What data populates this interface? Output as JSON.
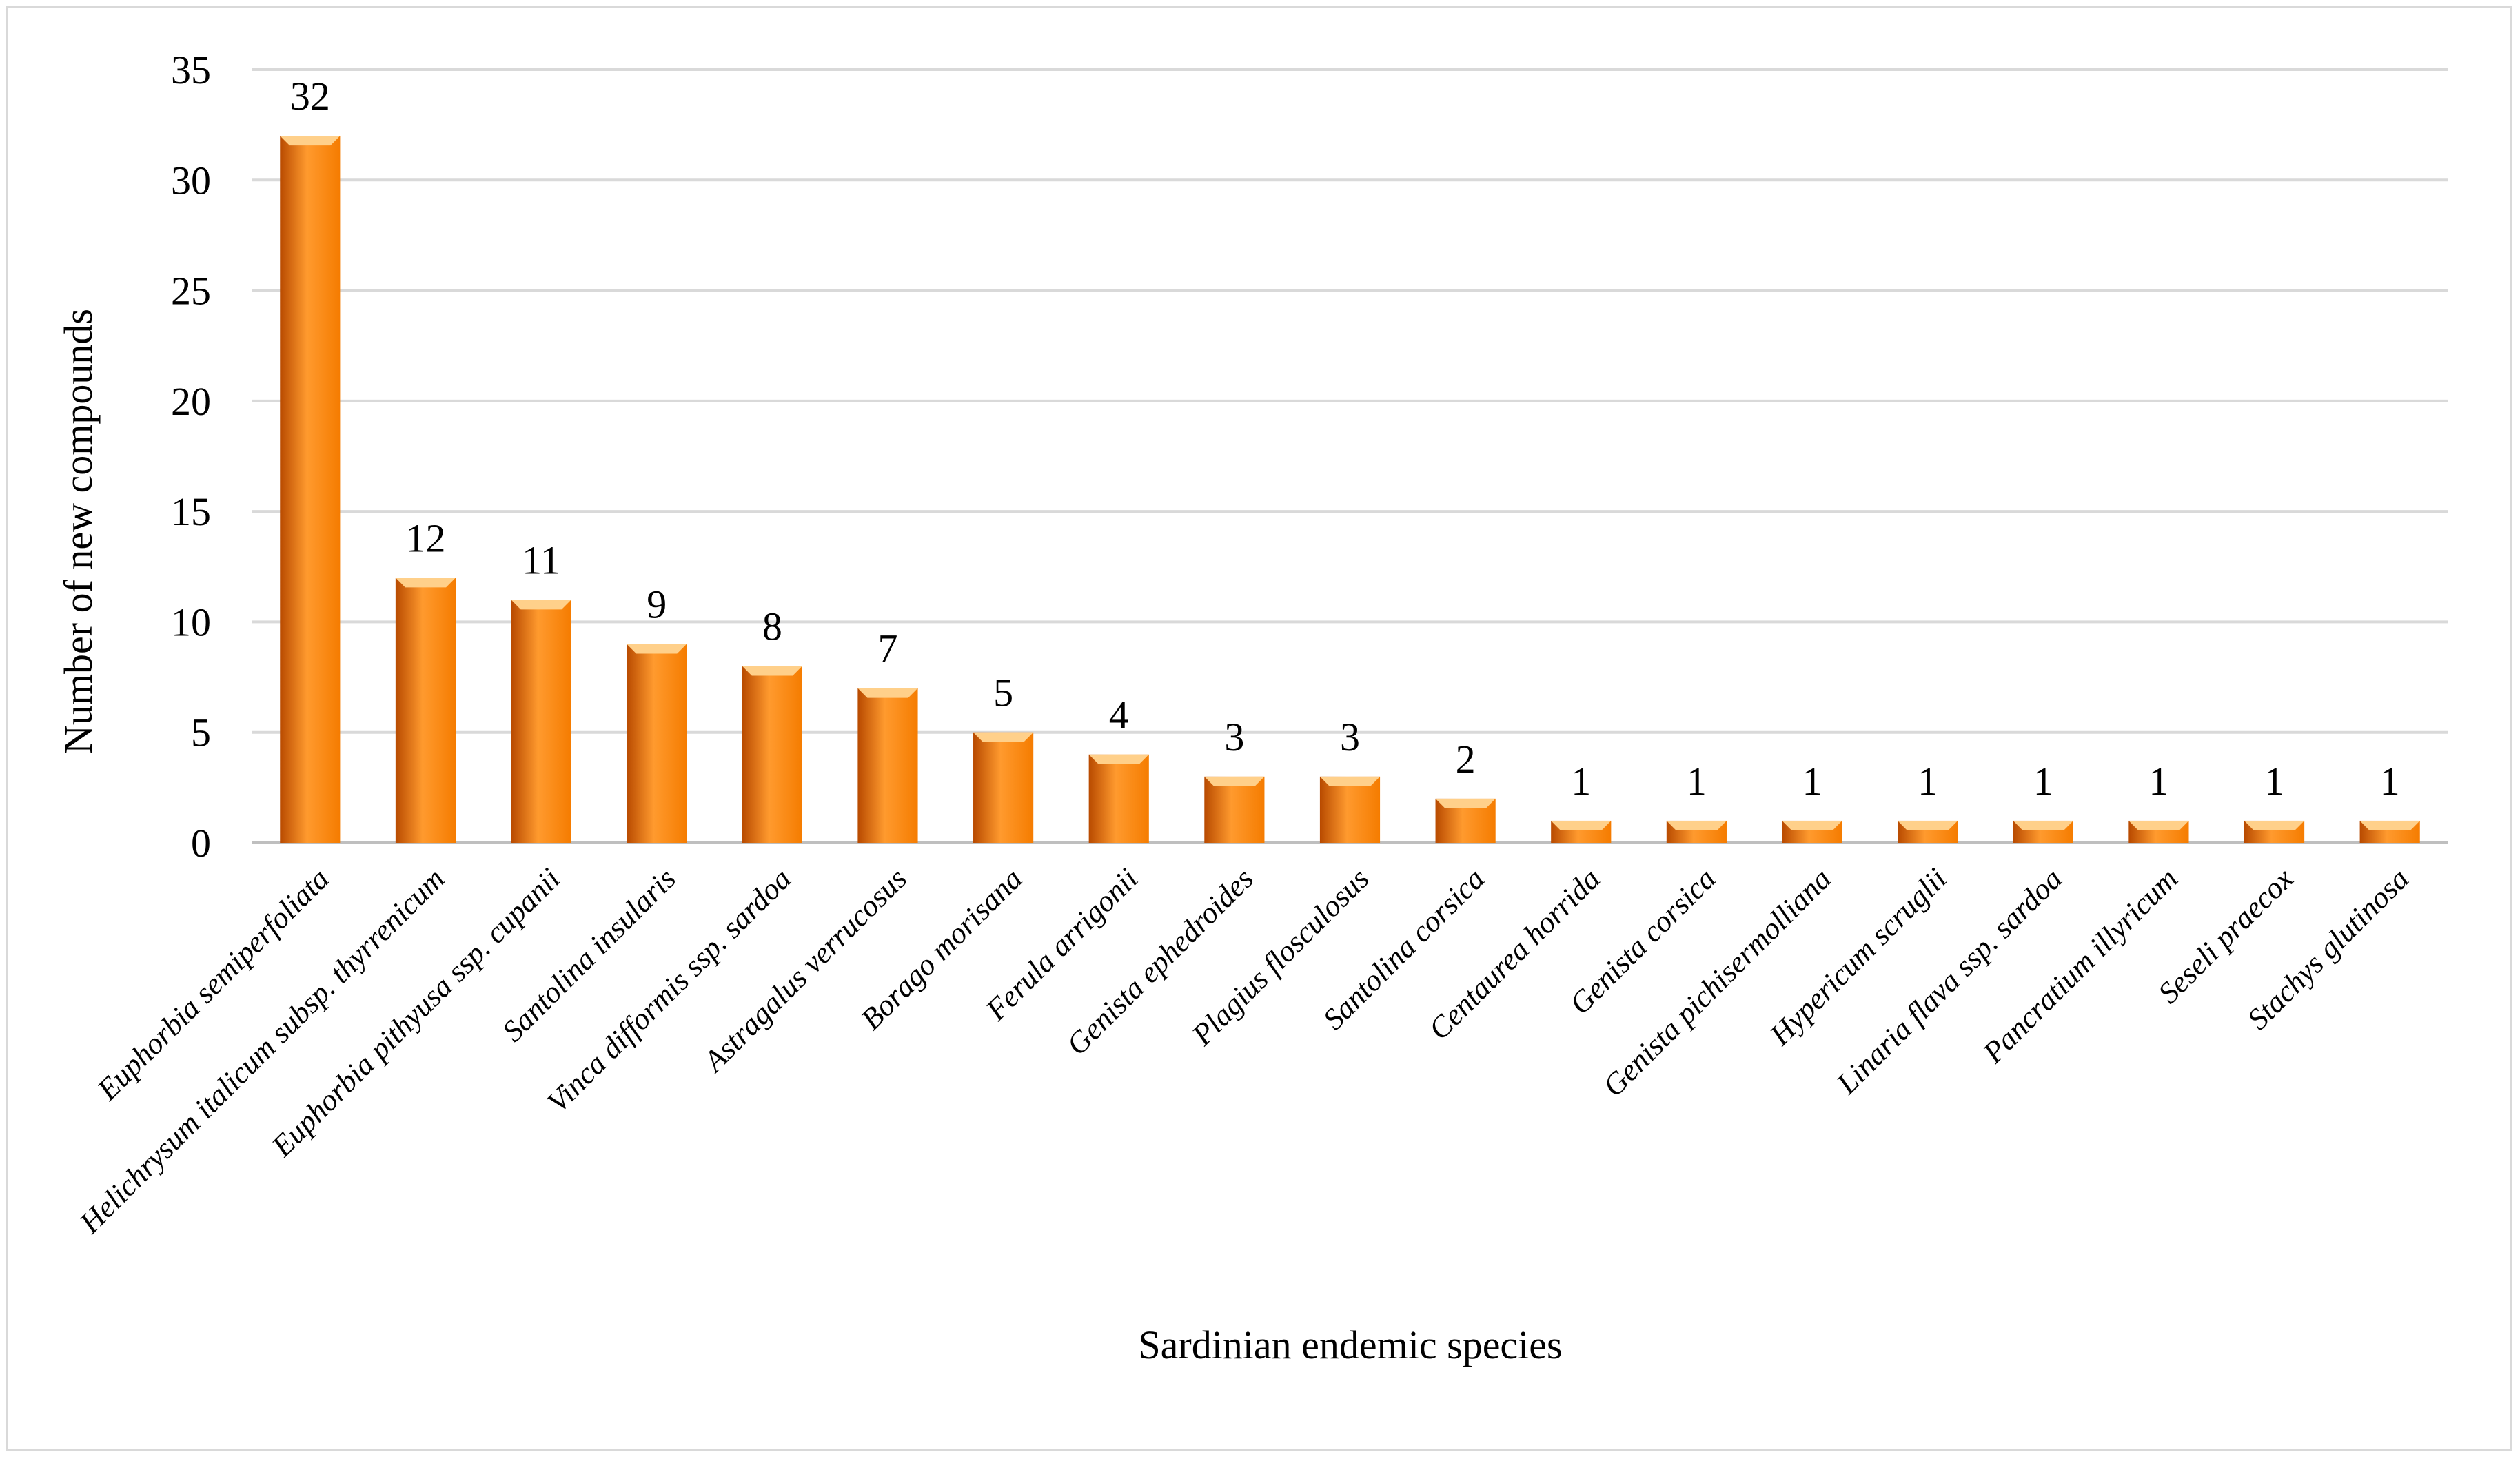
{
  "chart_data": {
    "type": "bar",
    "title": "",
    "xlabel": "Sardinian endemic species",
    "ylabel": "Number of new compounds",
    "ylim": [
      0,
      35
    ],
    "yticks": [
      0,
      5,
      10,
      15,
      20,
      25,
      30,
      35
    ],
    "grid": true,
    "legend": "none",
    "categories": [
      "Euphorbia semiperfoliata",
      "Helichrysum italicum subsp. thyrrenicum",
      "Euphorbia pithyusa ssp. cupanii",
      "Santolina insularis",
      "Vinca difformis ssp. sardoa",
      "Astragalus verrucosus",
      "Borago morisana",
      "Ferula arrigonii",
      "Genista ephedroides",
      "Plagius flosculosus",
      "Santolina corsica",
      "Centaurea horrida",
      "Genista corsica",
      "Genista pichisermolliana",
      "Hypericum scruglii",
      "Linaria flava ssp. sardoa",
      "Pancratium illyricum",
      "Seseli praecox",
      "Stachys glutinosa"
    ],
    "values": [
      32,
      12,
      11,
      9,
      8,
      7,
      5,
      4,
      3,
      3,
      2,
      1,
      1,
      1,
      1,
      1,
      1,
      1,
      1
    ],
    "colors": {
      "bar_light": "#ff9a2e",
      "bar_mid": "#f57c00",
      "bar_dark": "#b84a00",
      "bar_top": "#ffd08a"
    }
  }
}
